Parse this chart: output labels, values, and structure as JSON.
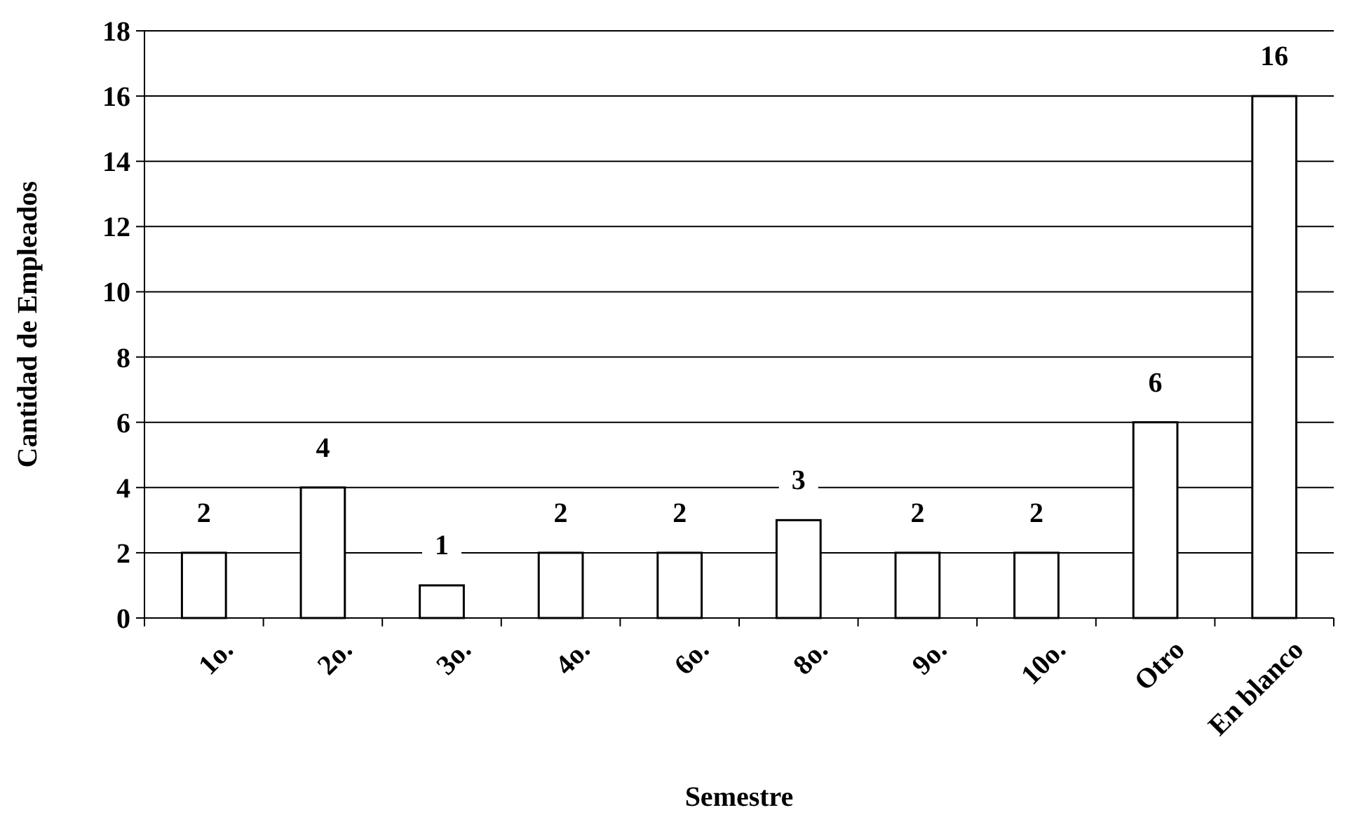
{
  "chart_data": {
    "type": "bar",
    "xlabel": "Semestre",
    "ylabel": "Cantidad de Empleados",
    "categories": [
      "1o.",
      "2o.",
      "3o.",
      "4o.",
      "6o.",
      "8o.",
      "9o.",
      "10o.",
      "Otro",
      "En blanco"
    ],
    "values": [
      2,
      4,
      1,
      2,
      2,
      3,
      2,
      2,
      6,
      16
    ],
    "color": "#ffffff",
    "ylim": [
      0,
      18
    ],
    "yticks": [
      0,
      2,
      4,
      6,
      8,
      10,
      12,
      14,
      16,
      18
    ],
    "grid": "y",
    "data_labels": true
  }
}
